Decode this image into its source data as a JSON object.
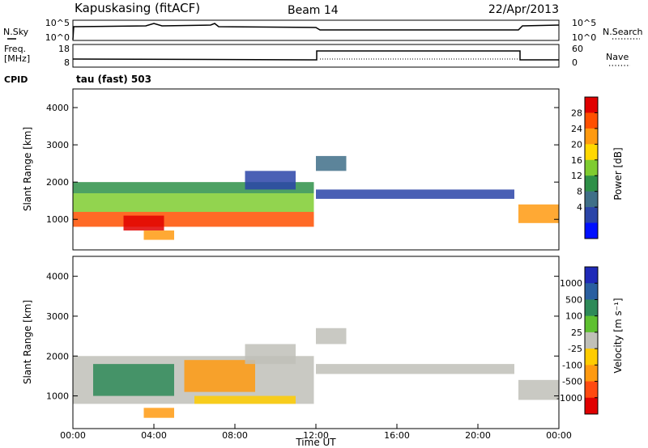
{
  "header": {
    "station": "Kapuskasing (fitACF)",
    "beam": "Beam 14",
    "date": "22/Apr/2013"
  },
  "panels": {
    "nsky": {
      "left_label": "N.Sky",
      "right_label": "N.Search",
      "left_ticks": [
        "10^5",
        "10^0"
      ],
      "right_ticks": [
        "10^5",
        "10^0"
      ]
    },
    "freq": {
      "left_label_1": "Freq.",
      "left_label_2": "[MHz]",
      "left_ticks": [
        "18",
        "8"
      ],
      "right_label": "Nave",
      "right_ticks": [
        "60",
        "0"
      ]
    },
    "cpid": {
      "label": "CPID",
      "value": "tau (fast) 503"
    }
  },
  "chart_data": [
    {
      "type": "heatmap",
      "name": "power",
      "ylabel": "Slant Range [km]",
      "xlabel": "",
      "ylim": [
        180,
        4500
      ],
      "xlim": [
        0,
        24
      ],
      "y_ticks": [
        1000,
        2000,
        3000,
        4000
      ],
      "colorbar": {
        "label": "Power [dB]",
        "ticks": [
          "28",
          "24",
          "20",
          "16",
          "12",
          "8",
          "4"
        ],
        "colors": [
          "#e00000",
          "#ff5000",
          "#ff9a10",
          "#ffd800",
          "#7fcc30",
          "#2e9048",
          "#3f6f88",
          "#2a44a8",
          "#0010ff"
        ]
      },
      "bands": [
        {
          "t0": 0.0,
          "t1": 11.9,
          "r0": 800,
          "r1": 1200,
          "color": "#ff5000"
        },
        {
          "t0": 0.0,
          "t1": 11.9,
          "r0": 1200,
          "r1": 1700,
          "color": "#7fcc30"
        },
        {
          "t0": 0.0,
          "t1": 11.9,
          "r0": 1700,
          "r1": 2000,
          "color": "#2e9048"
        },
        {
          "t0": 2.5,
          "t1": 4.5,
          "r0": 700,
          "r1": 1100,
          "color": "#e00000"
        },
        {
          "t0": 3.5,
          "t1": 5.0,
          "r0": 450,
          "r1": 700,
          "color": "#ff9a10"
        },
        {
          "t0": 8.5,
          "t1": 11.0,
          "r0": 1800,
          "r1": 2300,
          "color": "#2a44a8"
        },
        {
          "t0": 12.0,
          "t1": 21.8,
          "r0": 1550,
          "r1": 1800,
          "color": "#2a44a8"
        },
        {
          "t0": 12.0,
          "t1": 13.5,
          "r0": 2300,
          "r1": 2700,
          "color": "#3f6f88"
        },
        {
          "t0": 22.0,
          "t1": 24.0,
          "r0": 900,
          "r1": 1400,
          "color": "#ff9a10"
        }
      ]
    },
    {
      "type": "heatmap",
      "name": "velocity",
      "ylabel": "Slant Range [km]",
      "xlabel": "Time UT",
      "ylim": [
        180,
        4500
      ],
      "xlim": [
        0,
        24
      ],
      "y_ticks": [
        1000,
        2000,
        3000,
        4000
      ],
      "x_ticks": [
        "00:00",
        "04:00",
        "08:00",
        "12:00",
        "16:00",
        "20:00",
        "00:00"
      ],
      "colorbar": {
        "label": "Velocity [m s⁻¹]",
        "ticks": [
          "1000",
          "500",
          "100",
          "25",
          "-25",
          "-100",
          "-500",
          "-1000"
        ],
        "colors": [
          "#1f2ab8",
          "#2a5fa0",
          "#2e8a58",
          "#5ec030",
          "#c0c0b8",
          "#ffcc00",
          "#ff9a10",
          "#ff4a10",
          "#e00000"
        ]
      },
      "bands": [
        {
          "t0": 0.0,
          "t1": 11.9,
          "r0": 800,
          "r1": 2000,
          "color": "#c0c0b8"
        },
        {
          "t0": 1.0,
          "t1": 5.0,
          "r0": 1000,
          "r1": 1800,
          "color": "#2e8a58"
        },
        {
          "t0": 5.5,
          "t1": 9.0,
          "r0": 1100,
          "r1": 1900,
          "color": "#ff9a10"
        },
        {
          "t0": 3.5,
          "t1": 5.0,
          "r0": 450,
          "r1": 700,
          "color": "#ff9a10"
        },
        {
          "t0": 6.0,
          "t1": 11.0,
          "r0": 800,
          "r1": 1000,
          "color": "#ffcc00"
        },
        {
          "t0": 8.5,
          "t1": 11.0,
          "r0": 1800,
          "r1": 2300,
          "color": "#c0c0b8"
        },
        {
          "t0": 12.0,
          "t1": 21.8,
          "r0": 1550,
          "r1": 1800,
          "color": "#c0c0b8"
        },
        {
          "t0": 12.0,
          "t1": 13.5,
          "r0": 2300,
          "r1": 2700,
          "color": "#c0c0b8"
        },
        {
          "t0": 22.0,
          "t1": 24.0,
          "r0": 900,
          "r1": 1400,
          "color": "#c0c0b8"
        }
      ]
    }
  ]
}
